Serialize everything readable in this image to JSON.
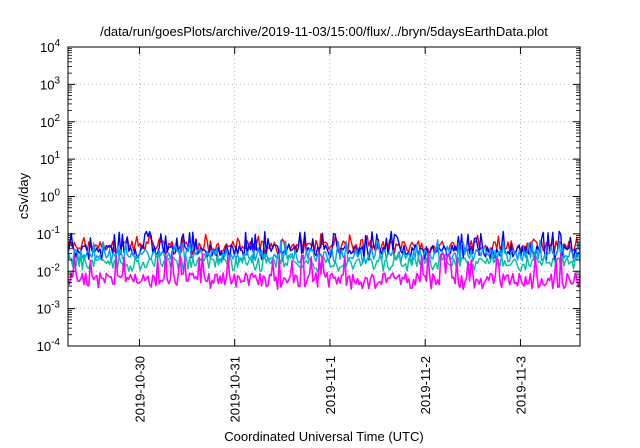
{
  "chart_data": {
    "type": "line",
    "title": "/data/run/goesPlots/archive/2019-11-03/15:00/flux/../bryn/5daysEarthData.plot",
    "xlabel": "Coordinated Universal Time (UTC)",
    "ylabel": "cSv/day",
    "yscale": "log",
    "ylim": [
      0.0001,
      10000
    ],
    "y_ticks": [
      {
        "base": "10",
        "exp": "-4"
      },
      {
        "base": "10",
        "exp": "-3"
      },
      {
        "base": "10",
        "exp": "-2"
      },
      {
        "base": "10",
        "exp": "-1"
      },
      {
        "base": "10",
        "exp": "0"
      },
      {
        "base": "10",
        "exp": "1"
      },
      {
        "base": "10",
        "exp": "2"
      },
      {
        "base": "10",
        "exp": "3"
      },
      {
        "base": "10",
        "exp": "4"
      }
    ],
    "x_ticks": [
      "2019-10-30",
      "2019-10-31",
      "2019-11-1",
      "2019-11-2",
      "2019-11-3"
    ],
    "xlim": [
      "2019-10-29 06:00",
      "2019-11-03 15:00"
    ],
    "grid": true,
    "series": [
      {
        "color": "#ff0000",
        "typical": 0.05,
        "low": 0.035,
        "high": 0.1
      },
      {
        "color": "#0000ff",
        "typical": 0.04,
        "low": 0.025,
        "high": 0.12
      },
      {
        "color": "#00a0ff",
        "typical": 0.03,
        "low": 0.02,
        "high": 0.07
      },
      {
        "color": "#00c0a0",
        "typical": 0.018,
        "low": 0.012,
        "high": 0.03
      },
      {
        "color": "#ff00ff",
        "typical": 0.007,
        "low": 0.004,
        "high": 0.03
      }
    ]
  }
}
